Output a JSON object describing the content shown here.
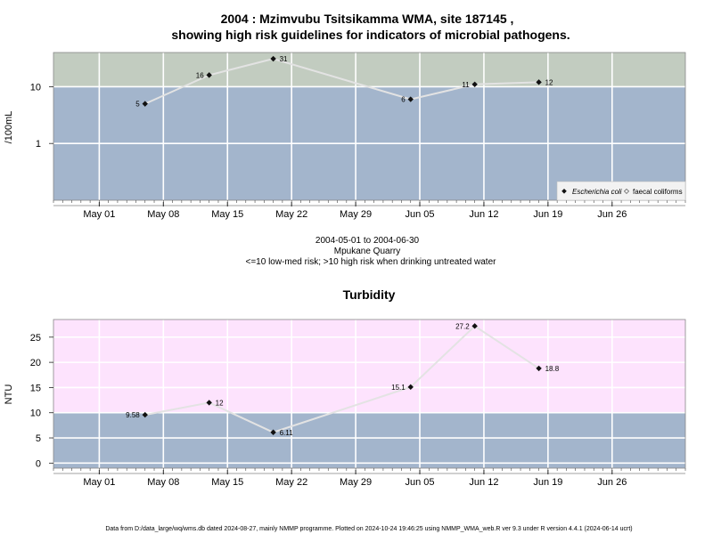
{
  "chart_data": [
    {
      "type": "line",
      "title": "2004 : Mzimvubu Tsitsikamma WMA, site 187145 ,",
      "subtitle": "showing high risk guidelines for indicators of microbial pathogens.",
      "ylabel": "/100mL",
      "yscale": "log",
      "ylim": [
        0.1,
        40
      ],
      "yticks": [
        1,
        10
      ],
      "ytick_labels": [
        "1",
        "10"
      ],
      "xlim": [
        "2004-04-26",
        "2004-07-04"
      ],
      "xticks": [
        "2004-05-01",
        "2004-05-08",
        "2004-05-15",
        "2004-05-22",
        "2004-05-29",
        "2004-06-05",
        "2004-06-12",
        "2004-06-19",
        "2004-06-26"
      ],
      "xtick_labels": [
        "May 01",
        "May 08",
        "May 15",
        "May 22",
        "May 29",
        "Jun 05",
        "Jun 12",
        "Jun 19",
        "Jun 26"
      ],
      "grid": true,
      "guideline": 10,
      "zone_colors": {
        "below": "#a3b5cc",
        "above": "#c2ccc0"
      },
      "line_color": "#e3e3e3",
      "series": [
        {
          "name": "Escherichia coli",
          "x": [
            "2004-05-06",
            "2004-05-13",
            "2004-05-20",
            "2004-06-04",
            "2004-06-11",
            "2004-06-18"
          ],
          "y": [
            5,
            16,
            31,
            6,
            11,
            12
          ],
          "labels": [
            "5",
            "16",
            "31",
            "6",
            "11",
            "12"
          ],
          "label_side": [
            "left",
            "left",
            "right",
            "left",
            "left",
            "right"
          ]
        },
        {
          "name": "faecal coliforms",
          "x": [],
          "y": []
        }
      ],
      "legend_placement": "bottom-right",
      "caption": [
        "2004-05-01 to 2004-06-30",
        "Mpukane Quarry",
        "<=10 low-med risk; >10 high risk when drinking untreated water"
      ]
    },
    {
      "type": "line",
      "title": "Turbidity",
      "ylabel": "NTU",
      "ylim": [
        -1,
        28.5
      ],
      "yticks": [
        0,
        5,
        10,
        15,
        20,
        25
      ],
      "ytick_labels": [
        "0",
        "5",
        "10",
        "15",
        "20",
        "25"
      ],
      "xlim": [
        "2004-04-26",
        "2004-07-04"
      ],
      "xticks": [
        "2004-05-01",
        "2004-05-08",
        "2004-05-15",
        "2004-05-22",
        "2004-05-29",
        "2004-06-05",
        "2004-06-12",
        "2004-06-19",
        "2004-06-26"
      ],
      "xtick_labels": [
        "May 01",
        "May 08",
        "May 15",
        "May 22",
        "May 29",
        "Jun 05",
        "Jun 12",
        "Jun 19",
        "Jun 26"
      ],
      "grid": true,
      "guideline": 10,
      "zone_colors": {
        "below": "#a3b5cc",
        "above": "#fde3fd"
      },
      "line_color": "#e3e3e3",
      "series": [
        {
          "x": [
            "2004-05-06",
            "2004-05-13",
            "2004-05-20",
            "2004-06-04",
            "2004-06-11",
            "2004-06-18"
          ],
          "y": [
            9.58,
            12,
            6.11,
            15.1,
            27.2,
            18.8
          ],
          "labels": [
            "9.58",
            "12",
            "6.11",
            "15.1",
            "27.2",
            "18.8"
          ],
          "label_side": [
            "left",
            "right",
            "right",
            "left",
            "left",
            "right"
          ]
        }
      ]
    }
  ],
  "footer": "Data from D:/data_large/wq/wms.db dated 2024-08-27, mainly NMMP programme. Plotted on 2024-10-24 19:46:25 using NMMP_WMA_web.R ver 9.3 under R version 4.4.1 (2024-06-14 ucrt)"
}
